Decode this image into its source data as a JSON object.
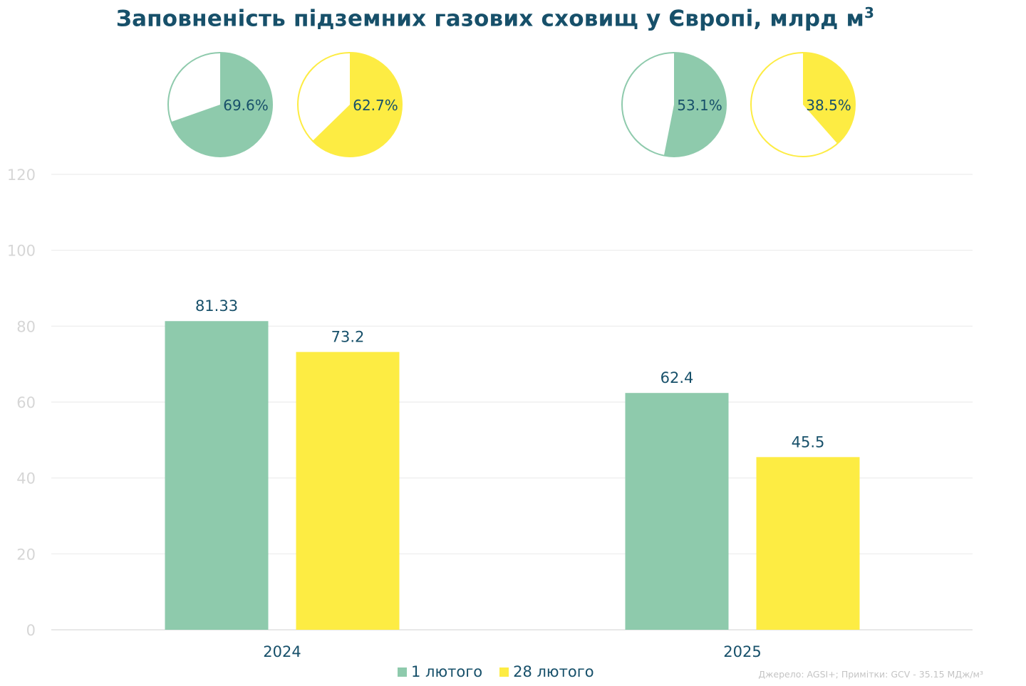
{
  "title": "Заповненість підземних газових сховищ у Європі, млрд м",
  "title_superscript": "3",
  "source_note": "Джерело: AGSI+; Примітки: GCV - 35.15 МДж/м³",
  "chart_data": [
    {
      "type": "bar",
      "title": "Заповненість підземних газових сховищ у Європі, млрд м³",
      "categories": [
        "2024",
        "2025"
      ],
      "series": [
        {
          "name": "1 лютого",
          "color": "#8ecaac",
          "values": [
            81.33,
            62.4
          ],
          "labels": [
            "81.33",
            "62.4"
          ]
        },
        {
          "name": "28 лютого",
          "color": "#fdec43",
          "values": [
            73.2,
            45.5
          ],
          "labels": [
            "73.2",
            "45.5"
          ]
        }
      ],
      "ylim": [
        0,
        120
      ],
      "yticks": [
        0,
        20,
        40,
        60,
        80,
        100,
        120
      ],
      "grid": true,
      "legend": "bottom"
    },
    {
      "type": "pie",
      "year": "2024",
      "series": "1 лютого",
      "color": "#8ecaac",
      "value": 69.6,
      "label": "69.6%"
    },
    {
      "type": "pie",
      "year": "2024",
      "series": "28 лютого",
      "color": "#fdec43",
      "value": 62.7,
      "label": "62.7%"
    },
    {
      "type": "pie",
      "year": "2025",
      "series": "1 лютого",
      "color": "#8ecaac",
      "value": 53.1,
      "label": "53.1%"
    },
    {
      "type": "pie",
      "year": "2025",
      "series": "28 лютого",
      "color": "#fdec43",
      "value": 38.5,
      "label": "38.5%"
    }
  ]
}
